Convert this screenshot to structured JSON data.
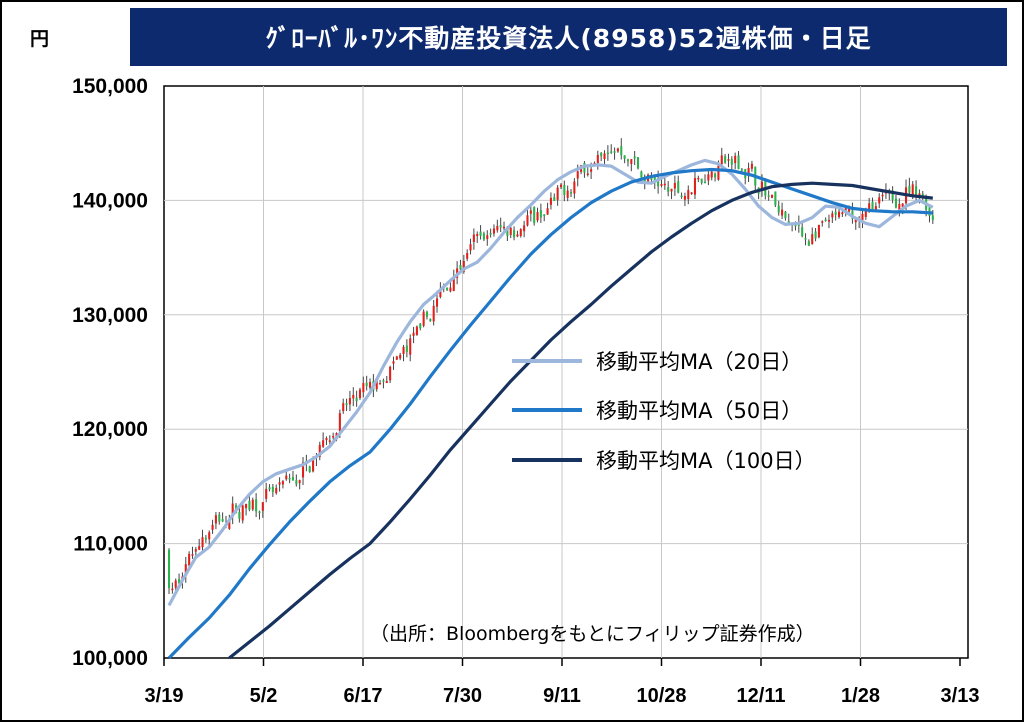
{
  "header": {
    "unit": "円",
    "title": "ｸﾞﾛｰﾊﾞﾙ･ﾜﾝ不動産投資法人(8958)52週株価・日足"
  },
  "source_note": "（出所：Bloombergをもとにフィリップ証券作成）",
  "colors": {
    "title_bg": "#0d2a6e",
    "up_candle": "#e0201b",
    "down_candle": "#2bb24c",
    "ma20": "#9db7dc",
    "ma50": "#1f78c8",
    "ma100": "#17325e",
    "grid": "#c8c8c8"
  },
  "chart_data": {
    "type": "candlestick",
    "title": "ｸﾞﾛｰﾊﾞﾙ･ﾜﾝ不動産投資法人(8958)52週株価・日足",
    "ylabel": "円",
    "ylim": [
      100000,
      150000
    ],
    "yticks": [
      100000,
      110000,
      120000,
      130000,
      140000,
      150000
    ],
    "ytick_labels": [
      "100,000",
      "110,000",
      "120,000",
      "130,000",
      "140,000",
      "150,000"
    ],
    "xtick_labels": [
      "3/19",
      "5/2",
      "6/17",
      "7/30",
      "9/11",
      "10/28",
      "12/11",
      "1/28",
      "3/13"
    ],
    "grid": true,
    "legend_position": "center-right",
    "series": [
      {
        "name": "移動平均MA（20日）",
        "points": [
          [
            0,
            104600
          ],
          [
            4,
            106800
          ],
          [
            8,
            108800
          ],
          [
            12,
            109700
          ],
          [
            16,
            111200
          ],
          [
            20,
            112900
          ],
          [
            24,
            114300
          ],
          [
            28,
            115400
          ],
          [
            32,
            116100
          ],
          [
            36,
            116500
          ],
          [
            40,
            116900
          ],
          [
            44,
            117600
          ],
          [
            48,
            118500
          ],
          [
            52,
            120000
          ],
          [
            56,
            121500
          ],
          [
            60,
            123200
          ],
          [
            64,
            125500
          ],
          [
            68,
            127600
          ],
          [
            72,
            129400
          ],
          [
            76,
            130900
          ],
          [
            80,
            131900
          ],
          [
            84,
            133000
          ],
          [
            88,
            134000
          ],
          [
            92,
            134600
          ],
          [
            96,
            135800
          ],
          [
            100,
            137200
          ],
          [
            104,
            138500
          ],
          [
            108,
            139600
          ],
          [
            112,
            140800
          ],
          [
            116,
            141800
          ],
          [
            120,
            142500
          ],
          [
            124,
            143000
          ],
          [
            128,
            143100
          ],
          [
            132,
            143000
          ],
          [
            136,
            142300
          ],
          [
            140,
            141600
          ],
          [
            144,
            141500
          ],
          [
            148,
            142100
          ],
          [
            152,
            142600
          ],
          [
            156,
            143100
          ],
          [
            160,
            143500
          ],
          [
            164,
            143200
          ],
          [
            168,
            142300
          ],
          [
            172,
            141000
          ],
          [
            176,
            139500
          ],
          [
            180,
            138500
          ],
          [
            184,
            137900
          ],
          [
            188,
            138000
          ],
          [
            192,
            138500
          ],
          [
            196,
            139500
          ],
          [
            200,
            139400
          ],
          [
            204,
            138600
          ],
          [
            208,
            138000
          ],
          [
            212,
            137700
          ],
          [
            216,
            138600
          ],
          [
            220,
            139500
          ],
          [
            224,
            140000
          ],
          [
            228,
            139400
          ]
        ]
      },
      {
        "name": "移動平均MA（50日）",
        "points": [
          [
            0,
            100000
          ],
          [
            6,
            101800
          ],
          [
            12,
            103500
          ],
          [
            18,
            105500
          ],
          [
            24,
            107800
          ],
          [
            30,
            109900
          ],
          [
            36,
            111900
          ],
          [
            42,
            113700
          ],
          [
            48,
            115400
          ],
          [
            54,
            116800
          ],
          [
            60,
            118000
          ],
          [
            66,
            120000
          ],
          [
            72,
            122200
          ],
          [
            78,
            124600
          ],
          [
            84,
            126900
          ],
          [
            90,
            129100
          ],
          [
            96,
            131200
          ],
          [
            102,
            133300
          ],
          [
            108,
            135300
          ],
          [
            114,
            137000
          ],
          [
            120,
            138500
          ],
          [
            126,
            139800
          ],
          [
            132,
            140800
          ],
          [
            138,
            141600
          ],
          [
            144,
            142100
          ],
          [
            150,
            142400
          ],
          [
            156,
            142600
          ],
          [
            162,
            142700
          ],
          [
            168,
            142600
          ],
          [
            174,
            142200
          ],
          [
            180,
            141600
          ],
          [
            186,
            141000
          ],
          [
            192,
            140400
          ],
          [
            198,
            139800
          ],
          [
            204,
            139300
          ],
          [
            210,
            139100
          ],
          [
            216,
            139000
          ],
          [
            222,
            139000
          ],
          [
            228,
            138900
          ]
        ]
      },
      {
        "name": "移動平均MA（100日）",
        "points": [
          [
            18,
            100000
          ],
          [
            24,
            101400
          ],
          [
            30,
            102800
          ],
          [
            36,
            104300
          ],
          [
            42,
            105800
          ],
          [
            48,
            107300
          ],
          [
            54,
            108700
          ],
          [
            60,
            110000
          ],
          [
            66,
            111900
          ],
          [
            72,
            113900
          ],
          [
            78,
            116000
          ],
          [
            84,
            118200
          ],
          [
            90,
            120200
          ],
          [
            96,
            122200
          ],
          [
            102,
            124200
          ],
          [
            108,
            126000
          ],
          [
            114,
            127800
          ],
          [
            120,
            129400
          ],
          [
            126,
            130900
          ],
          [
            132,
            132500
          ],
          [
            138,
            134000
          ],
          [
            144,
            135500
          ],
          [
            150,
            136800
          ],
          [
            156,
            138000
          ],
          [
            162,
            139100
          ],
          [
            168,
            140000
          ],
          [
            174,
            140700
          ],
          [
            180,
            141200
          ],
          [
            186,
            141400
          ],
          [
            192,
            141500
          ],
          [
            198,
            141400
          ],
          [
            204,
            141300
          ],
          [
            210,
            141000
          ],
          [
            216,
            140700
          ],
          [
            222,
            140400
          ],
          [
            228,
            140200
          ]
        ]
      }
    ]
  }
}
